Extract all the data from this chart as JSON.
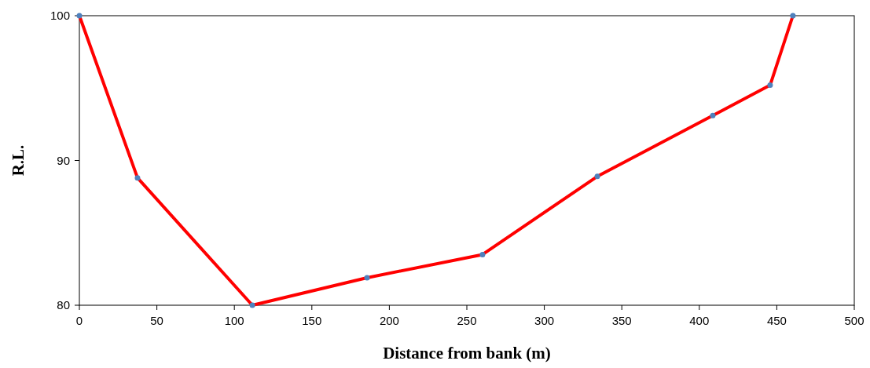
{
  "chart_data": {
    "type": "line",
    "xlabel": "Distance from bank (m)",
    "ylabel": "R.L.",
    "x": [
      0,
      37.5,
      111.6,
      185.6,
      260.1,
      334.2,
      408.7,
      445.7,
      460.4
    ],
    "series": [
      {
        "color": "#ff0000",
        "values": [
          100,
          88.8,
          80,
          81.9,
          83.5,
          88.9,
          93.1,
          95.2,
          100
        ]
      }
    ],
    "xlim": [
      0,
      500
    ],
    "xticks": [
      0,
      50,
      100,
      150,
      200,
      250,
      300,
      350,
      400,
      450,
      500
    ],
    "ylim": [
      80,
      100
    ],
    "yticks": [
      80,
      90,
      100
    ],
    "grid": false,
    "marker": "circle",
    "line_style": "solid"
  }
}
